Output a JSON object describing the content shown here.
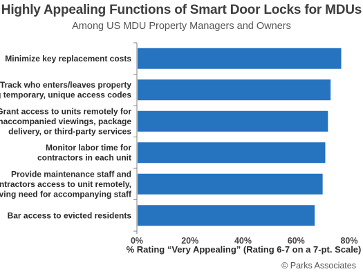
{
  "chart_data": {
    "type": "bar",
    "orientation": "horizontal",
    "title": "Highly Appealing Functions of Smart Door Locks for MDUs",
    "subtitle": "Among US MDU Property Managers and Owners",
    "categories": [
      [
        "Minimize key replacement costs"
      ],
      [
        "Track who enters/leaves property",
        "using temporary, unique access codes"
      ],
      [
        "Grant access to units remotely for",
        "unaccompanied viewings, package",
        "delivery, or third-party services"
      ],
      [
        "Monitor labor time for",
        "contractors in each unit"
      ],
      [
        "Provide maintenance staff and",
        "contractors access to unit remotely,",
        "removing need for accompanying staff"
      ],
      [
        "Bar access to evicted residents"
      ]
    ],
    "values": [
      0.77,
      0.73,
      0.72,
      0.71,
      0.7,
      0.67
    ],
    "xlabel": "% Rating “Very Appealing” (Rating 6-7 on a 7-pt. Scale)",
    "ticks": [
      "0%",
      "20%",
      "40%",
      "60%",
      "80%"
    ],
    "xlim": [
      0,
      0.8
    ],
    "grid": false,
    "bar_color": "#2673c0",
    "source": "© Parks Associates"
  }
}
